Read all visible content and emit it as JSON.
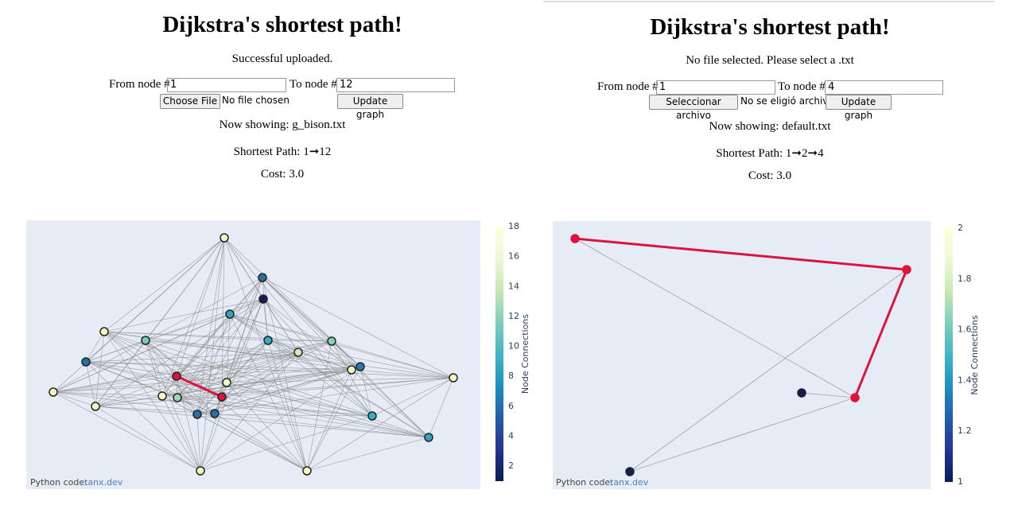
{
  "panels": [
    {
      "title": "Dijkstra's shortest path!",
      "status": "Successful uploaded.",
      "from_label": "From node #",
      "from_value": "1",
      "to_label": "To node #",
      "to_value": "12",
      "file_button": "Choose File",
      "file_status": "No file chosen",
      "update_button": "Update graph",
      "now_showing": "Now showing: g_bison.txt",
      "shortest_path": "Shortest Path: 1➞12",
      "cost": "Cost: 3.0",
      "colorbar": {
        "title": "Node Connections",
        "range": [
          1,
          18
        ],
        "ticks": [
          2,
          4,
          6,
          8,
          10,
          12,
          14,
          16,
          18
        ]
      },
      "footer_label": "Python code:",
      "footer_link": "tanx.dev"
    },
    {
      "title": "Dijkstra's shortest path!",
      "status": "No file selected. Please select a .txt",
      "from_label": "From node #",
      "from_value": "1",
      "to_label": "To node #",
      "to_value": "4",
      "file_button": "Seleccionar archivo",
      "file_status": "No se eligió archivo",
      "update_button": "Update graph",
      "now_showing": "Now showing: default.txt",
      "shortest_path": "Shortest Path: 1➞2➞4",
      "cost": "Cost: 3.0",
      "colorbar": {
        "title": "Node Connections",
        "range": [
          1,
          2
        ],
        "ticks": [
          1,
          1.2,
          1.4,
          1.6,
          1.8,
          2
        ]
      },
      "footer_label": "Python code:",
      "footer_link": "tanx.dev"
    }
  ]
}
